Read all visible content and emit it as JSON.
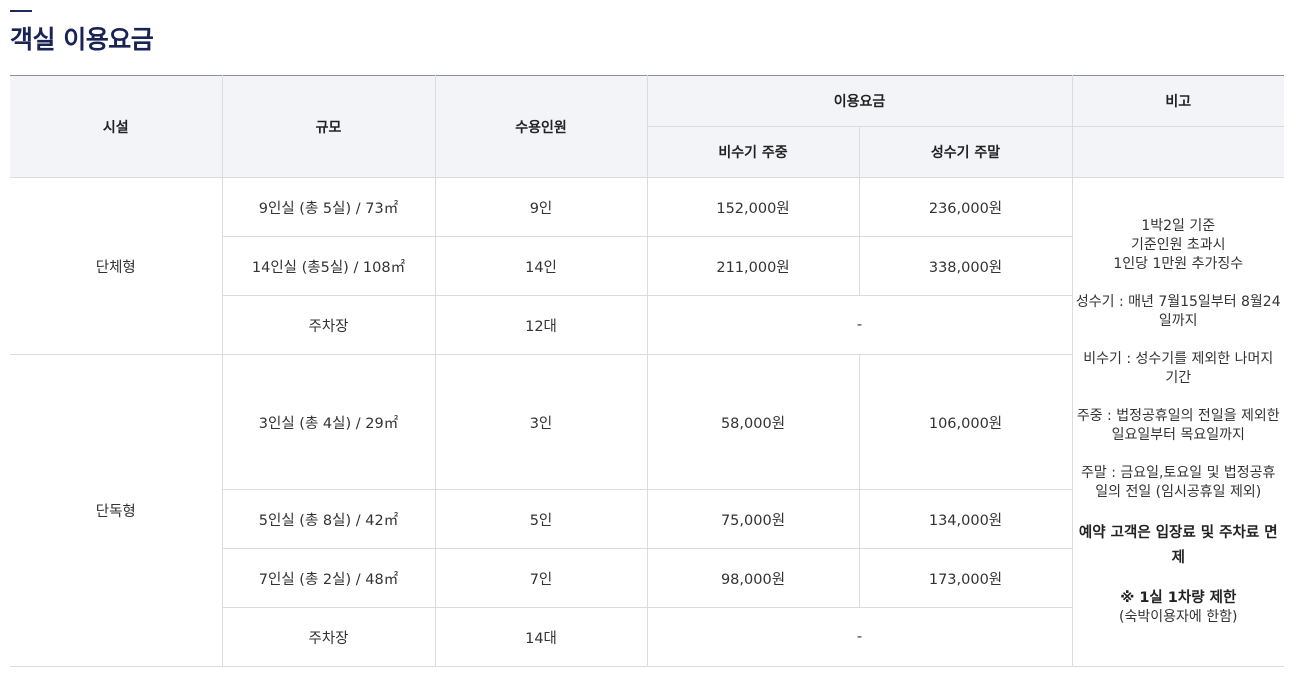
{
  "page": {
    "title": "객실 이용요금"
  },
  "table": {
    "headers": {
      "facility": "시설",
      "size": "규모",
      "capacity": "수용인원",
      "fee": "이용요금",
      "remarks": "비고",
      "off_peak": "비수기 주중",
      "peak": "성수기 주말"
    },
    "groups": {
      "group": "단체형",
      "single": "단독형"
    },
    "rows": [
      {
        "size": "9인실 (총 5실) / 73㎡",
        "capacity": "9인",
        "off_peak": "152,000원",
        "peak": "236,000원"
      },
      {
        "size": "14인실 (총5실) / 108㎡",
        "capacity": "14인",
        "off_peak": "211,000원",
        "peak": "338,000원"
      },
      {
        "size": "주차장",
        "capacity": "12대",
        "fee": "-"
      },
      {
        "size": "3인실 (총 4실) / 29㎡",
        "capacity": "3인",
        "off_peak": "58,000원",
        "peak": "106,000원"
      },
      {
        "size": "5인실 (총 8실) / 42㎡",
        "capacity": "5인",
        "off_peak": "75,000원",
        "peak": "134,000원"
      },
      {
        "size": "7인실 (총 2실) / 48㎡",
        "capacity": "7인",
        "off_peak": "98,000원",
        "peak": "173,000원"
      },
      {
        "size": "주차장",
        "capacity": "14대",
        "fee": "-"
      }
    ],
    "remarks": {
      "line1": "1박2일 기준",
      "line2": "기준인원 초과시",
      "line3": "1인당 1만원 추가징수",
      "peak_def": "성수기 : 매년 7월15일부터 8월24일까지",
      "off_peak_def": "비수기 : 성수기를 제외한 나머지 기간",
      "weekday_def": "주중 : 법정공휴일의 전일을 제외한 일요일부터 목요일까지",
      "weekend_def": "주말 : 금요일,토요일 및 법정공휴일의 전일 (임시공휴일 제외)",
      "exemption": "예약 고객은 입장료 및 주차료 면제",
      "parking_limit": "※ 1실 1차량 제한",
      "parking_note": "(숙박이용자에 한함)"
    }
  },
  "colors": {
    "title": "#1a2356",
    "header_bg": "#f3f4f8",
    "border": "#dcdcdc"
  }
}
